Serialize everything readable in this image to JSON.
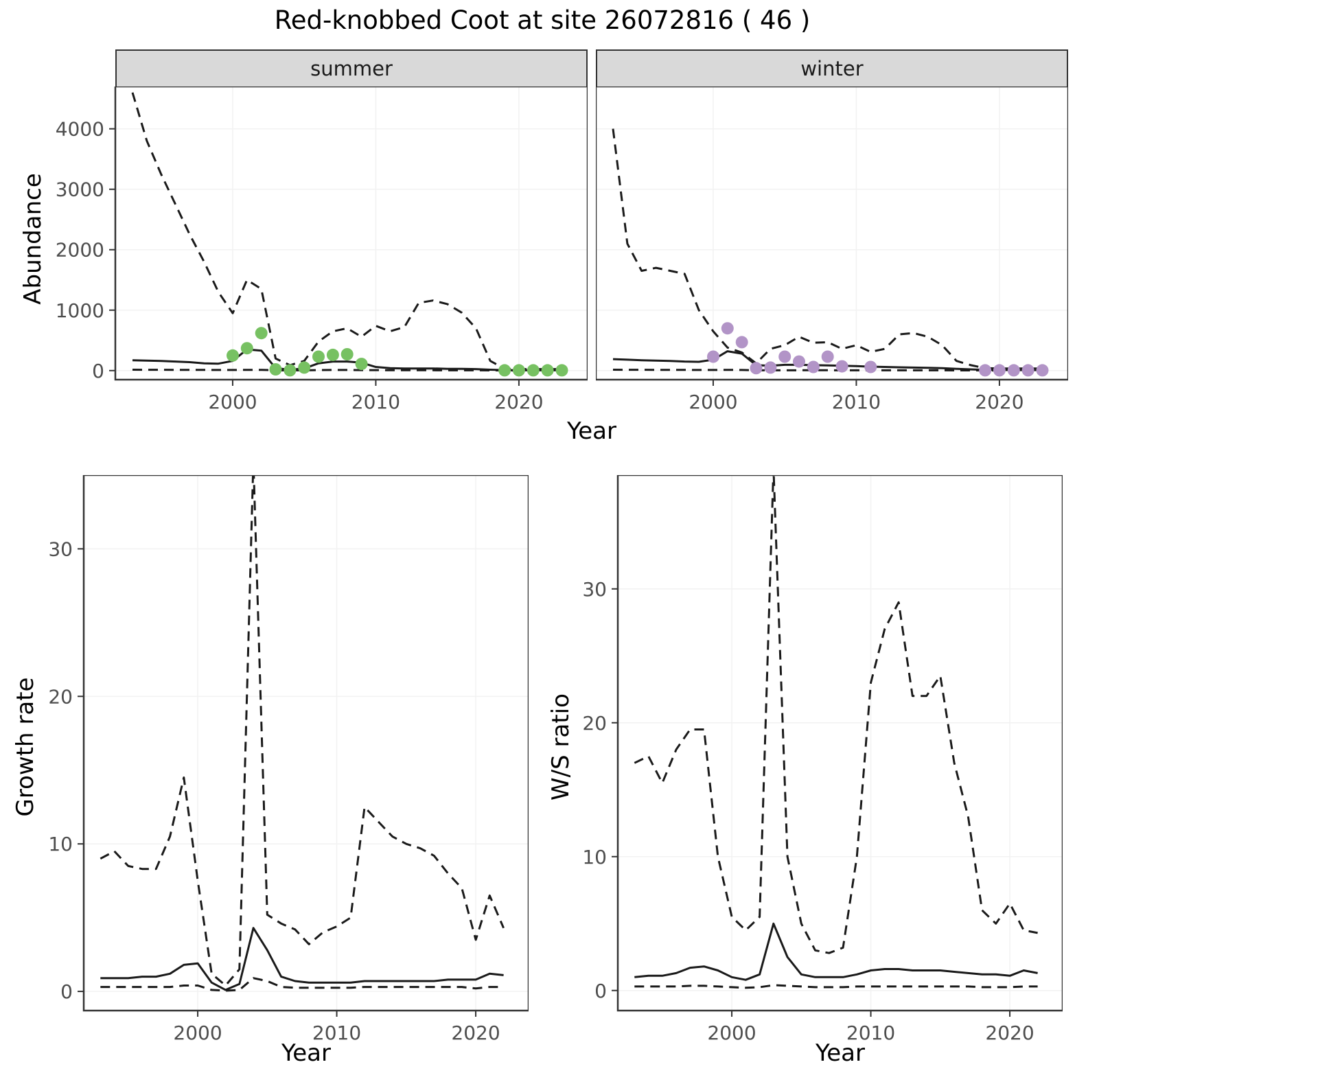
{
  "title": "Red-knobbed Coot at site 26072816 ( 46 )",
  "colors": {
    "line": "#1a1a1a",
    "summer_points": "#77c162",
    "winter_points": "#b294c7",
    "strip_bg": "#d9d9d9",
    "panel_border": "#333333",
    "tick_text": "#4d4d4d",
    "tick_mark": "#333333",
    "grid": "#f2f2f2"
  },
  "facets": {
    "summer": "summer",
    "winter": "winter"
  },
  "axis": {
    "abundance_ylabel": "Abundance",
    "top_xlabel": "Year",
    "growth_ylabel": "Growth rate",
    "growth_xlabel": "Year",
    "ws_ylabel": "W/S ratio",
    "ws_xlabel": "Year"
  },
  "chart_data": [
    {
      "id": "abundance-summer",
      "type": "line",
      "facet_label": "summer",
      "xlabel": "Year",
      "ylabel": "Abundance",
      "x": [
        1993,
        1994,
        1995,
        1996,
        1997,
        1998,
        1999,
        2000,
        2001,
        2002,
        2003,
        2004,
        2005,
        2006,
        2007,
        2008,
        2009,
        2010,
        2011,
        2012,
        2013,
        2014,
        2015,
        2016,
        2017,
        2018,
        2019,
        2020,
        2021,
        2022,
        2023
      ],
      "series": [
        {
          "name": "upper_ci",
          "style": "dashed",
          "values": [
            4600,
            3800,
            3250,
            2750,
            2250,
            1800,
            1300,
            950,
            1500,
            1350,
            200,
            90,
            160,
            480,
            650,
            700,
            560,
            740,
            650,
            720,
            1120,
            1160,
            1100,
            960,
            700,
            160,
            30,
            25,
            25,
            25,
            25
          ]
        },
        {
          "name": "mean",
          "style": "solid",
          "values": [
            170,
            165,
            160,
            150,
            140,
            120,
            115,
            160,
            350,
            330,
            40,
            15,
            35,
            120,
            150,
            150,
            130,
            60,
            40,
            35,
            35,
            35,
            30,
            30,
            25,
            15,
            8,
            6,
            5,
            5,
            5
          ]
        },
        {
          "name": "lower_ci",
          "style": "dashed",
          "values": [
            15,
            14,
            13,
            12,
            12,
            11,
            10,
            10,
            12,
            12,
            5,
            3,
            5,
            8,
            10,
            10,
            8,
            8,
            6,
            6,
            6,
            6,
            5,
            5,
            5,
            3,
            2,
            2,
            2,
            2,
            2
          ]
        }
      ],
      "points": {
        "x": [
          2000,
          2001,
          2002,
          2003,
          2004,
          2005,
          2006,
          2007,
          2008,
          2009,
          2019,
          2020,
          2021,
          2022,
          2023
        ],
        "y": [
          250,
          370,
          620,
          20,
          5,
          50,
          230,
          260,
          270,
          110,
          5,
          5,
          5,
          5,
          5
        ],
        "color": "#77c162"
      },
      "xlim": [
        1991.8,
        2024.8
      ],
      "ylim": [
        -150,
        4700
      ],
      "xticks": [
        2000,
        2010,
        2020
      ],
      "yticks": [
        0,
        1000,
        2000,
        3000,
        4000
      ],
      "show_ytick_labels": true
    },
    {
      "id": "abundance-winter",
      "type": "line",
      "facet_label": "winter",
      "xlabel": "Year",
      "ylabel": "Abundance",
      "x": [
        1993,
        1994,
        1995,
        1996,
        1997,
        1998,
        1999,
        2000,
        2001,
        2002,
        2003,
        2004,
        2005,
        2006,
        2007,
        2008,
        2009,
        2010,
        2011,
        2012,
        2013,
        2014,
        2015,
        2016,
        2017,
        2018,
        2019,
        2020,
        2021,
        2022,
        2023
      ],
      "series": [
        {
          "name": "upper_ci",
          "style": "dashed",
          "values": [
            4000,
            2100,
            1650,
            1700,
            1650,
            1600,
            1000,
            650,
            380,
            300,
            120,
            360,
            420,
            560,
            460,
            470,
            360,
            420,
            310,
            360,
            600,
            620,
            560,
            420,
            160,
            90,
            40,
            35,
            35,
            35,
            35
          ]
        },
        {
          "name": "mean",
          "style": "solid",
          "values": [
            190,
            180,
            170,
            165,
            160,
            150,
            145,
            180,
            320,
            280,
            90,
            80,
            95,
            95,
            90,
            85,
            80,
            75,
            65,
            60,
            55,
            50,
            45,
            40,
            30,
            20,
            12,
            10,
            8,
            8,
            8
          ]
        },
        {
          "name": "lower_ci",
          "style": "dashed",
          "values": [
            15,
            14,
            13,
            12,
            12,
            11,
            10,
            10,
            12,
            10,
            5,
            4,
            5,
            6,
            6,
            6,
            5,
            5,
            5,
            5,
            5,
            5,
            4,
            4,
            3,
            3,
            2,
            2,
            2,
            2,
            2
          ]
        }
      ],
      "points": {
        "x": [
          2000,
          2001,
          2002,
          2003,
          2004,
          2005,
          2006,
          2007,
          2008,
          2009,
          2011,
          2019,
          2020,
          2021,
          2022,
          2023
        ],
        "y": [
          230,
          700,
          470,
          40,
          50,
          230,
          150,
          60,
          230,
          70,
          60,
          5,
          5,
          5,
          5,
          5
        ],
        "color": "#b294c7"
      },
      "xlim": [
        1991.8,
        2024.8
      ],
      "ylim": [
        -150,
        4700
      ],
      "xticks": [
        2000,
        2010,
        2020
      ],
      "yticks": [
        0,
        1000,
        2000,
        3000,
        4000
      ],
      "show_ytick_labels": false
    },
    {
      "id": "growth-rate",
      "type": "line",
      "xlabel": "Year",
      "ylabel": "Growth rate",
      "x": [
        1993,
        1994,
        1995,
        1996,
        1997,
        1998,
        1999,
        2000,
        2001,
        2002,
        2003,
        2004,
        2005,
        2006,
        2007,
        2008,
        2009,
        2010,
        2011,
        2012,
        2013,
        2014,
        2015,
        2016,
        2017,
        2018,
        2019,
        2020,
        2021,
        2022
      ],
      "series": [
        {
          "name": "upper_ci",
          "style": "dashed",
          "values": [
            9,
            9.5,
            8.5,
            8.3,
            8.3,
            10.5,
            14.5,
            7.5,
            1.2,
            0.4,
            1.5,
            36,
            5.2,
            4.6,
            4.2,
            3.2,
            4,
            4.4,
            5,
            12.5,
            11.5,
            10.5,
            10,
            9.7,
            9.2,
            8,
            7,
            3.5,
            6.5,
            4.3
          ]
        },
        {
          "name": "mean",
          "style": "solid",
          "values": [
            0.9,
            0.9,
            0.9,
            1,
            1,
            1.2,
            1.8,
            1.9,
            0.6,
            0.1,
            0.5,
            4.3,
            2.8,
            1,
            0.7,
            0.6,
            0.6,
            0.6,
            0.6,
            0.7,
            0.7,
            0.7,
            0.7,
            0.7,
            0.7,
            0.8,
            0.8,
            0.8,
            1.2,
            1.1
          ]
        },
        {
          "name": "lower_ci",
          "style": "dashed",
          "values": [
            0.3,
            0.3,
            0.3,
            0.3,
            0.3,
            0.3,
            0.4,
            0.4,
            0.1,
            0.05,
            0.1,
            0.9,
            0.7,
            0.3,
            0.25,
            0.25,
            0.25,
            0.25,
            0.25,
            0.3,
            0.3,
            0.3,
            0.3,
            0.3,
            0.3,
            0.3,
            0.3,
            0.2,
            0.3,
            0.3
          ]
        }
      ],
      "xlim": [
        1991.8,
        2023.8
      ],
      "ylim": [
        -1.3,
        35
      ],
      "xticks": [
        2000,
        2010,
        2020
      ],
      "yticks": [
        0,
        10,
        20,
        30
      ],
      "show_ytick_labels": true
    },
    {
      "id": "ws-ratio",
      "type": "line",
      "xlabel": "Year",
      "ylabel": "W/S ratio",
      "x": [
        1993,
        1994,
        1995,
        1996,
        1997,
        1998,
        1999,
        2000,
        2001,
        2002,
        2003,
        2004,
        2005,
        2006,
        2007,
        2008,
        2009,
        2010,
        2011,
        2012,
        2013,
        2014,
        2015,
        2016,
        2017,
        2018,
        2019,
        2020,
        2021,
        2022
      ],
      "series": [
        {
          "name": "upper_ci",
          "style": "dashed",
          "values": [
            17,
            17.5,
            15.5,
            18,
            19.5,
            19.5,
            10,
            5.5,
            4.5,
            5.5,
            39,
            10,
            5,
            3,
            2.8,
            3.2,
            10,
            23,
            27,
            29,
            22,
            22,
            23.5,
            17,
            13,
            6,
            5,
            6.5,
            4.5,
            4.3
          ]
        },
        {
          "name": "mean",
          "style": "solid",
          "values": [
            1,
            1.1,
            1.1,
            1.3,
            1.7,
            1.8,
            1.5,
            1,
            0.8,
            1.2,
            5,
            2.5,
            1.2,
            1,
            1,
            1,
            1.2,
            1.5,
            1.6,
            1.6,
            1.5,
            1.5,
            1.5,
            1.4,
            1.3,
            1.2,
            1.2,
            1.1,
            1.5,
            1.3
          ]
        },
        {
          "name": "lower_ci",
          "style": "dashed",
          "values": [
            0.3,
            0.3,
            0.3,
            0.3,
            0.35,
            0.35,
            0.3,
            0.25,
            0.2,
            0.25,
            0.4,
            0.35,
            0.3,
            0.25,
            0.25,
            0.25,
            0.3,
            0.3,
            0.3,
            0.3,
            0.3,
            0.3,
            0.3,
            0.3,
            0.3,
            0.25,
            0.25,
            0.25,
            0.3,
            0.3
          ]
        }
      ],
      "xlim": [
        1991.8,
        2023.8
      ],
      "ylim": [
        -1.5,
        38.5
      ],
      "xticks": [
        2000,
        2010,
        2020
      ],
      "yticks": [
        0,
        10,
        20,
        30
      ],
      "show_ytick_labels": true
    }
  ]
}
